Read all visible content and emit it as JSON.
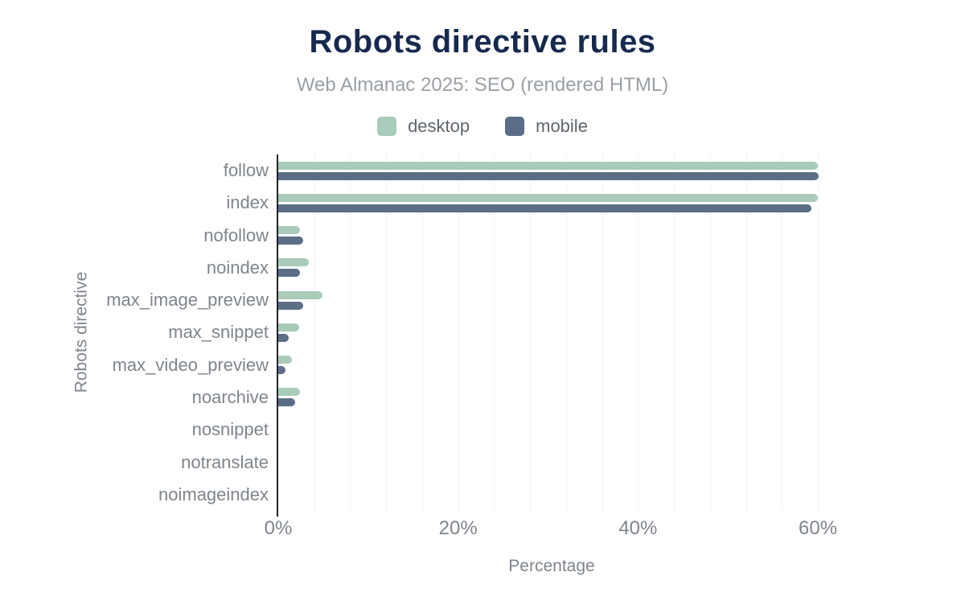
{
  "header": {
    "title": "Robots directive rules",
    "subtitle": "Web Almanac 2025: SEO (rendered HTML)"
  },
  "legend": {
    "items": [
      {
        "label": "desktop",
        "color": "#a9cbb9"
      },
      {
        "label": "mobile",
        "color": "#5c6e87"
      }
    ]
  },
  "axes": {
    "xlabel": "Percentage",
    "ylabel": "Robots directive"
  },
  "colors": {
    "title": "#16294e",
    "subtitle": "#9aa0a6",
    "desktop_bar": "#a9cbb9",
    "mobile_bar": "#5c6e87",
    "axis_line": "#1f2329",
    "gridline": "#f2f2f2",
    "tick_text": "#7f858c"
  },
  "chart_data": {
    "type": "bar",
    "orientation": "horizontal",
    "title": "Robots directive rules",
    "subtitle": "Web Almanac 2025: SEO (rendered HTML)",
    "xlabel": "Percentage",
    "ylabel": "Robots directive",
    "categories": [
      "follow",
      "index",
      "nofollow",
      "noindex",
      "max_image_preview",
      "max_snippet",
      "max_video_preview",
      "noarchive",
      "nosnippet",
      "notranslate",
      "noimageindex"
    ],
    "series": [
      {
        "name": "desktop",
        "color": "#a9cbb9",
        "values": [
          60.0,
          60.0,
          2.4,
          3.4,
          4.9,
          2.3,
          1.5,
          2.4,
          0.0,
          0.0,
          0.0
        ]
      },
      {
        "name": "mobile",
        "color": "#5c6e87",
        "values": [
          60.1,
          59.3,
          2.8,
          2.4,
          2.8,
          1.2,
          0.8,
          1.9,
          0.0,
          0.0,
          0.0
        ]
      }
    ],
    "xlim": [
      0,
      60.8
    ],
    "xticks": [
      {
        "value": 0,
        "label": "0%"
      },
      {
        "value": 20,
        "label": "20%"
      },
      {
        "value": 40,
        "label": "40%"
      },
      {
        "value": 60,
        "label": "60%"
      }
    ],
    "gridline_step_pct": 4,
    "grid": "vertical-only",
    "legend_position": "top"
  }
}
